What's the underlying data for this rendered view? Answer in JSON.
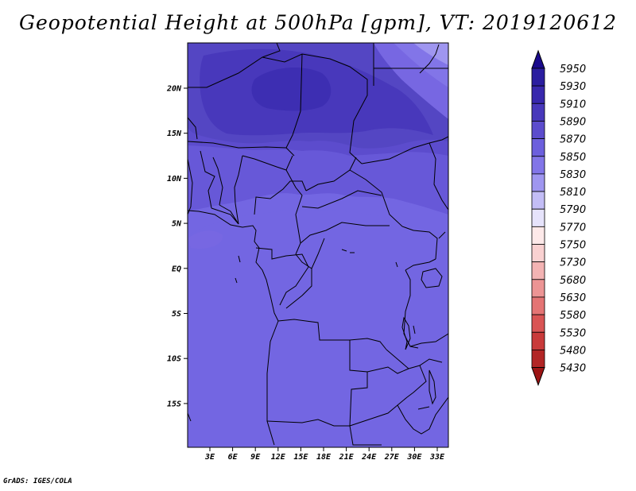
{
  "title": "Geopotential Height at 500hPa [gpm], VT: 2019120612",
  "credit": "GrADS: IGES/COLA",
  "map": {
    "lat_labels": [
      "20N",
      "15N",
      "10N",
      "5N",
      "EQ",
      "5S",
      "10S",
      "15S"
    ],
    "lon_labels": [
      "3E",
      "6E",
      "9E",
      "12E",
      "15E",
      "18E",
      "21E",
      "24E",
      "27E",
      "30E",
      "33E"
    ]
  },
  "colorbar": {
    "labels": [
      "5950",
      "5930",
      "5910",
      "5890",
      "5870",
      "5850",
      "5830",
      "5810",
      "5790",
      "5770",
      "5750",
      "5730",
      "5680",
      "5630",
      "5580",
      "5530",
      "5480",
      "5430"
    ],
    "colors": [
      "#1a0a8c",
      "#2b1ea0",
      "#3828ad",
      "#4838bb",
      "#5c4ccd",
      "#6c5fdd",
      "#8275e8",
      "#9f96f0",
      "#c3bdf6",
      "#e6e3fb",
      "#fde9e9",
      "#f9d1d1",
      "#f3b3b3",
      "#ec9494",
      "#e47474",
      "#d95454",
      "#c93a3a",
      "#b22525",
      "#9c1414"
    ]
  },
  "field_colors": {
    "c5890": "#4838bb",
    "c5880": "#5446c3",
    "c5870": "#5c4ccd",
    "c5860": "#6758d8",
    "c5850": "#6c5fdd",
    "c5840": "#7767e2",
    "c5830": "#8275e8",
    "c5810": "#9f96f0",
    "c5790": "#c3bdf6"
  }
}
